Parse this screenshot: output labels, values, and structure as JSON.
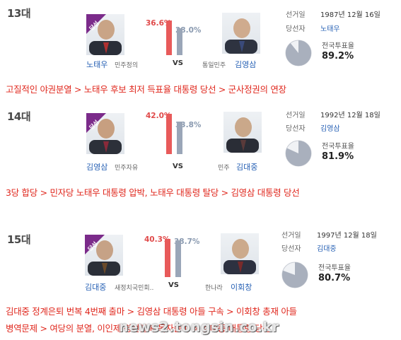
{
  "elections": [
    {
      "term": "13대",
      "badge": "당선",
      "winner": {
        "name": "노태우",
        "party": "민주정의",
        "pct": "36.6%",
        "share": 36.6
      },
      "loser": {
        "name": "김영삼",
        "party": "통일민주",
        "pct": "28.0%",
        "share": 28.0
      },
      "vs": "VS",
      "date_label": "선거일",
      "date": "1987년 12월 16일",
      "elected_label": "당선자",
      "elected": "노태우",
      "turnout_label": "전국투표율",
      "turnout": "89.2%",
      "turnout_value": 89.2
    },
    {
      "term": "14대",
      "badge": "당선",
      "winner": {
        "name": "김영삼",
        "party": "민주자유",
        "pct": "42.0%",
        "share": 42.0
      },
      "loser": {
        "name": "김대중",
        "party": "민주",
        "pct": "33.8%",
        "share": 33.8
      },
      "vs": "VS",
      "date_label": "선거일",
      "date": "1992년 12월 18일",
      "elected_label": "당선자",
      "elected": "김영삼",
      "turnout_label": "전국투표율",
      "turnout": "81.9%",
      "turnout_value": 81.9
    },
    {
      "term": "15대",
      "badge": "당선",
      "winner": {
        "name": "김대중",
        "party": "새정치국민회..",
        "pct": "40.3%",
        "share": 40.3
      },
      "loser": {
        "name": "이회창",
        "party": "한나라",
        "pct": "38.7%",
        "share": 38.7
      },
      "vs": "VS",
      "date_label": "선거일",
      "date": "1997년 12월 18일",
      "elected_label": "당선자",
      "elected": "김대중",
      "turnout_label": "전국투표율",
      "turnout": "80.7%",
      "turnout_value": 80.7
    }
  ],
  "captions": [
    "고질적인 야권분열 > 노태우 후보 최저 득표율 대통령 당선 > 군사정권의 연장",
    "3당 합당 > 민자당 노태우 대통령 압박, 노태우 대통령 탈당 > 김영삼 대통령 당선",
    "김대중 정계은퇴 번복 4번째 출마 > 김영삼 대통령 아들 구속 > 이회창 총재 아들",
    "병역문제 > 여당의 분열, 이인제 경선불복 독자출마 > 김대중 대통령 당선"
  ],
  "watermark": "news2.tongsin.co.kr",
  "colors": {
    "winner_bar": "#e85a5a",
    "loser_bar": "#9aa6b8",
    "caption": "#e0281e",
    "name": "#2660b4",
    "badge": "#7b2b8a"
  }
}
